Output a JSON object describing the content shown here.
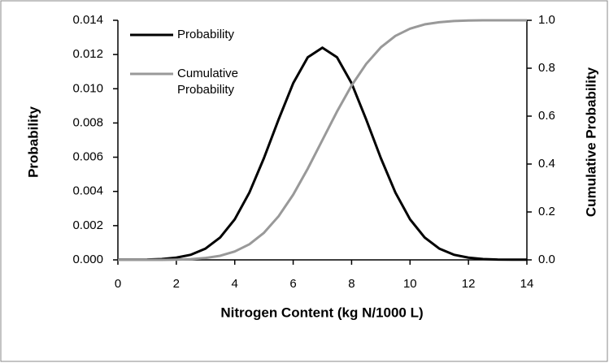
{
  "chart_data": {
    "type": "line",
    "xlabel": "Nitrogen Content (kg N/1000 L)",
    "ylabel": "Probability",
    "y2label": "Cumulative Probability",
    "x": [
      0,
      0.5,
      1,
      1.5,
      2,
      2.5,
      3,
      3.5,
      4,
      4.5,
      5,
      5.5,
      6,
      6.5,
      7,
      7.5,
      8,
      8.5,
      9,
      9.5,
      10,
      10.5,
      11,
      11.5,
      12,
      12.5,
      13,
      13.5,
      14
    ],
    "series": [
      {
        "name": "Probability",
        "color": "#000000",
        "values": [
          1e-05,
          1e-05,
          2e-05,
          5e-05,
          0.00013,
          0.0003,
          0.00066,
          0.00131,
          0.00237,
          0.00393,
          0.00595,
          0.0082,
          0.01032,
          0.01184,
          0.0124,
          0.01184,
          0.01032,
          0.0082,
          0.00595,
          0.00393,
          0.00237,
          0.00131,
          0.00066,
          0.0003,
          0.00013,
          5e-05,
          2e-05,
          1e-05,
          1e-05
        ]
      },
      {
        "name": "Cumulative Probability",
        "color": "#999999",
        "axis": "y2",
        "values": [
          0,
          0,
          0,
          0,
          0.001,
          0.003,
          0.008,
          0.017,
          0.035,
          0.065,
          0.113,
          0.182,
          0.272,
          0.381,
          0.5,
          0.619,
          0.728,
          0.818,
          0.887,
          0.935,
          0.965,
          0.983,
          0.992,
          0.997,
          0.999,
          1,
          1,
          1,
          1
        ]
      }
    ],
    "xlim": [
      0,
      14
    ],
    "xticks": [
      0,
      2,
      4,
      6,
      8,
      10,
      12,
      14
    ],
    "ylim": [
      0,
      0.014
    ],
    "yticks": [
      {
        "value": 0,
        "label": "0.000"
      },
      {
        "value": 0.002,
        "label": "0.002"
      },
      {
        "value": 0.004,
        "label": "0.004"
      },
      {
        "value": 0.006,
        "label": "0.006"
      },
      {
        "value": 0.008,
        "label": "0.008"
      },
      {
        "value": 0.01,
        "label": "0.010"
      },
      {
        "value": 0.012,
        "label": "0.012"
      },
      {
        "value": 0.014,
        "label": "0.014"
      }
    ],
    "y2lim": [
      0,
      1
    ],
    "y2ticks": [
      {
        "value": 0,
        "label": "0.0"
      },
      {
        "value": 0.2,
        "label": "0.2"
      },
      {
        "value": 0.4,
        "label": "0.4"
      },
      {
        "value": 0.6,
        "label": "0.6"
      },
      {
        "value": 0.8,
        "label": "0.8"
      },
      {
        "value": 1,
        "label": "1.0"
      }
    ],
    "legend": "top-left"
  }
}
